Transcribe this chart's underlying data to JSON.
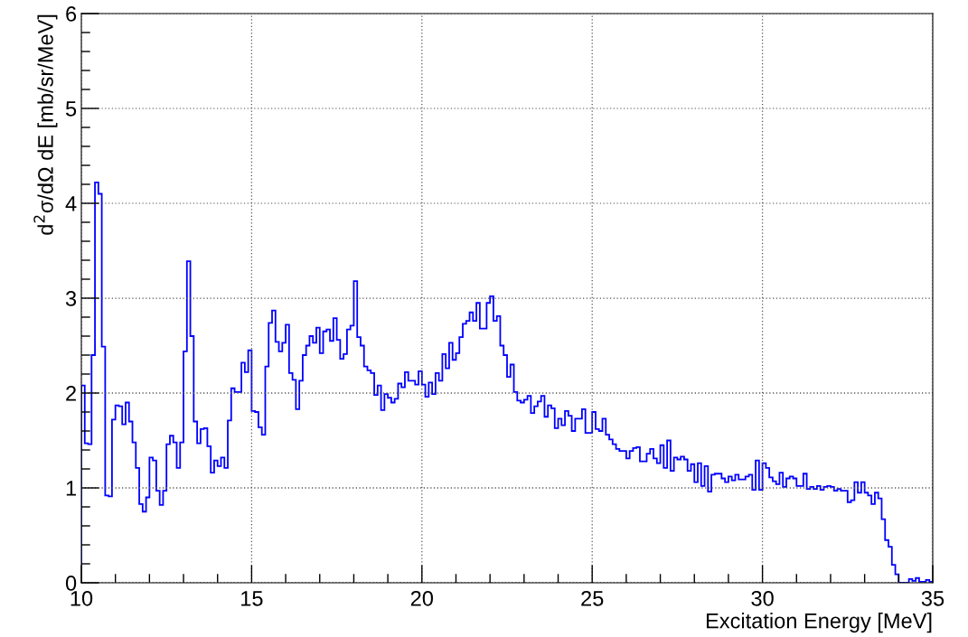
{
  "chart_data": {
    "type": "histogram",
    "xlabel": "Excitation Energy [MeV]",
    "ylabel": "d$^{2}$σ/dΩ dE [mb/sr/MeV]",
    "color": "#0000ff",
    "grid": true,
    "xlim": [
      10,
      35
    ],
    "xticks": [
      10,
      15,
      20,
      25,
      30,
      35
    ],
    "ylim": [
      0,
      6
    ],
    "yticks": [
      0,
      1,
      2,
      3,
      4,
      5,
      6
    ],
    "bins": [
      10.0,
      10.1,
      10.2,
      10.3,
      10.4,
      10.5,
      10.6,
      10.7,
      10.8,
      10.9,
      11.0,
      11.1,
      11.2,
      11.3,
      11.4,
      11.5,
      11.6,
      11.7,
      11.8,
      11.9,
      12.0,
      12.1,
      12.2,
      12.3,
      12.4,
      12.5,
      12.6,
      12.7,
      12.8,
      12.9,
      13.0,
      13.1,
      13.2,
      13.3,
      13.4,
      13.5,
      13.6,
      13.7,
      13.8,
      13.9,
      14.0,
      14.1,
      14.2,
      14.3,
      14.4,
      14.5,
      14.6,
      14.7,
      14.8,
      14.9,
      15.0,
      15.1,
      15.2,
      15.3,
      15.4,
      15.5,
      15.6,
      15.7,
      15.8,
      15.9,
      16.0,
      16.1,
      16.2,
      16.3,
      16.4,
      16.5,
      16.6,
      16.7,
      16.8,
      16.9,
      17.0,
      17.1,
      17.2,
      17.3,
      17.4,
      17.5,
      17.6,
      17.7,
      17.8,
      17.9,
      18.0,
      18.1,
      18.2,
      18.3,
      18.4,
      18.5,
      18.6,
      18.7,
      18.8,
      18.9,
      19.0,
      19.1,
      19.2,
      19.3,
      19.4,
      19.5,
      19.6,
      19.7,
      19.8,
      19.9,
      20.0,
      20.1,
      20.2,
      20.3,
      20.4,
      20.5,
      20.6,
      20.7,
      20.8,
      20.9,
      21.0,
      21.1,
      21.2,
      21.3,
      21.4,
      21.5,
      21.6,
      21.7,
      21.8,
      21.9,
      22.0,
      22.1,
      22.2,
      22.3,
      22.4,
      22.5,
      22.6,
      22.7,
      22.8,
      22.9,
      23.0,
      23.1,
      23.2,
      23.3,
      23.4,
      23.5,
      23.6,
      23.7,
      23.8,
      23.9,
      24.0,
      24.1,
      24.2,
      24.3,
      24.4,
      24.5,
      24.6,
      24.7,
      24.8,
      24.9,
      25.0,
      25.1,
      25.2,
      25.3,
      25.4,
      25.5,
      25.6,
      25.7,
      25.8,
      25.9,
      26.0,
      26.1,
      26.2,
      26.3,
      26.4,
      26.5,
      26.6,
      26.7,
      26.8,
      26.9,
      27.0,
      27.1,
      27.2,
      27.3,
      27.4,
      27.5,
      27.6,
      27.7,
      27.8,
      27.9,
      28.0,
      28.1,
      28.2,
      28.3,
      28.4,
      28.5,
      28.6,
      28.7,
      28.8,
      28.9,
      29.0,
      29.1,
      29.2,
      29.3,
      29.4,
      29.5,
      29.6,
      29.7,
      29.8,
      29.9,
      30.0,
      30.1,
      30.2,
      30.3,
      30.4,
      30.5,
      30.6,
      30.7,
      30.8,
      30.9,
      31.0,
      31.1,
      31.2,
      31.3,
      31.4,
      31.5,
      31.6,
      31.7,
      31.8,
      31.9,
      32.0,
      32.1,
      32.2,
      32.3,
      32.4,
      32.5,
      32.6,
      32.7,
      32.8,
      32.9,
      33.0,
      33.1,
      33.2,
      33.3,
      33.4,
      33.5,
      33.6,
      33.7,
      33.8,
      33.9,
      34.0,
      34.1,
      34.2,
      34.3,
      34.4,
      34.5,
      34.6,
      34.7,
      34.8,
      34.9,
      35.0
    ],
    "values": [
      2.08,
      1.47,
      1.46,
      2.4,
      4.22,
      4.1,
      2.49,
      0.92,
      0.91,
      1.72,
      1.87,
      1.86,
      1.67,
      1.9,
      1.7,
      1.48,
      1.21,
      0.83,
      0.75,
      0.9,
      1.32,
      1.29,
      0.97,
      0.82,
      0.97,
      1.46,
      1.55,
      1.48,
      1.21,
      1.48,
      2.44,
      3.39,
      2.6,
      1.7,
      1.47,
      1.62,
      1.63,
      1.44,
      1.16,
      1.29,
      1.23,
      1.32,
      1.21,
      1.71,
      2.05,
      2.01,
      2.01,
      2.32,
      2.22,
      2.45,
      1.81,
      1.8,
      1.64,
      1.56,
      2.28,
      2.74,
      2.87,
      2.54,
      2.44,
      2.53,
      2.72,
      2.21,
      2.14,
      1.83,
      2.13,
      2.4,
      2.5,
      2.6,
      2.53,
      2.69,
      2.42,
      2.65,
      2.67,
      2.55,
      2.79,
      2.56,
      2.36,
      2.41,
      2.67,
      2.71,
      3.18,
      2.59,
      2.5,
      2.28,
      2.24,
      2.21,
      1.98,
      2.08,
      1.82,
      1.99,
      1.95,
      1.9,
      1.94,
      2.1,
      2.06,
      2.22,
      2.13,
      2.13,
      2.09,
      2.23,
      2.09,
      1.96,
      2.11,
      1.99,
      2.21,
      2.13,
      2.41,
      2.26,
      2.53,
      2.35,
      2.42,
      2.59,
      2.73,
      2.76,
      2.85,
      2.76,
      2.95,
      2.68,
      2.68,
      2.95,
      3.02,
      2.76,
      2.81,
      2.5,
      2.4,
      2.17,
      2.3,
      2.01,
      1.92,
      1.9,
      1.93,
      1.97,
      1.79,
      1.86,
      1.91,
      1.97,
      1.75,
      1.87,
      1.84,
      1.63,
      1.73,
      1.66,
      1.81,
      1.76,
      1.6,
      1.73,
      1.73,
      1.83,
      1.58,
      1.58,
      1.8,
      1.62,
      1.6,
      1.73,
      1.56,
      1.51,
      1.46,
      1.41,
      1.39,
      1.39,
      1.31,
      1.39,
      1.42,
      1.43,
      1.28,
      1.28,
      1.36,
      1.41,
      1.31,
      1.26,
      1.45,
      1.21,
      1.5,
      1.18,
      1.32,
      1.3,
      1.33,
      1.3,
      1.18,
      1.25,
      1.06,
      1.26,
      1.02,
      1.23,
      0.96,
      1.14,
      1.15,
      1.15,
      1.1,
      1.06,
      1.12,
      1.08,
      1.14,
      1.09,
      1.09,
      1.12,
      1.14,
      0.98,
      1.29,
      0.98,
      1.26,
      1.21,
      1.11,
      1.07,
      1.04,
      1.16,
      1.01,
      1.1,
      1.12,
      1.1,
      1.02,
      1.02,
      1.15,
      0.99,
      1.01,
      0.99,
      1.02,
      0.98,
      1.01,
      1.02,
      1.01,
      0.97,
      0.99,
      0.97,
      0.97,
      0.85,
      0.87,
      1.06,
      0.95,
      1.06,
      0.95,
      0.92,
      0.83,
      0.95,
      0.89,
      0.67,
      0.45,
      0.38,
      0.19,
      0.09,
      0,
      0,
      0,
      0.04,
      0.02,
      0.05,
      0.01,
      0.01,
      0.03,
      0.01
    ]
  }
}
